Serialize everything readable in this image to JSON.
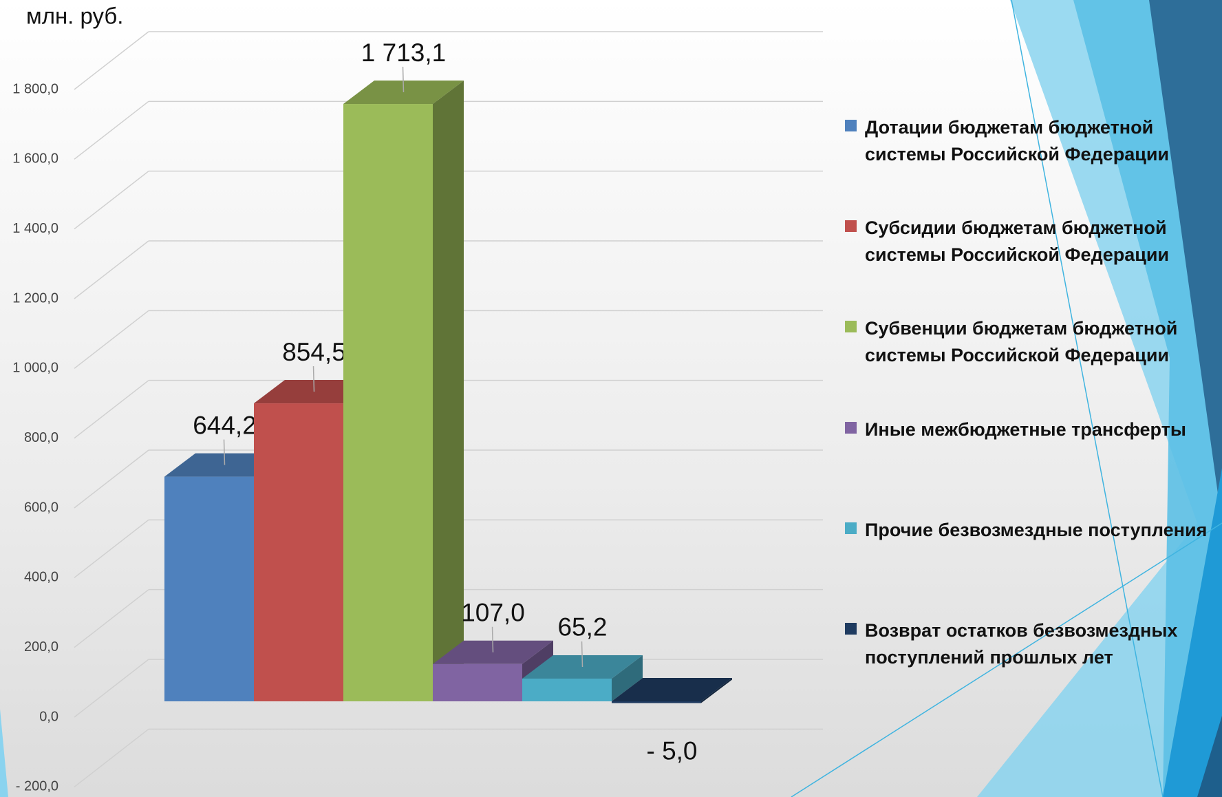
{
  "chart_data": {
    "type": "bar",
    "y_axis_label": "млн. руб.",
    "series": [
      {
        "name": "Дотации бюджетам бюджетной системы Российской Федерации",
        "color": "#4f81bd",
        "values": [
          644.2
        ],
        "value_labels": [
          "644,2"
        ]
      },
      {
        "name": "Субсидии бюджетам бюджетной системы Российской Федерации",
        "color": "#c0504d",
        "values": [
          854.5
        ],
        "value_labels": [
          "854,5"
        ]
      },
      {
        "name": "Субвенции бюджетам бюджетной системы Российской Федерации",
        "color": "#9bbb59",
        "values": [
          1713.1
        ],
        "value_labels": [
          "1 713,1"
        ]
      },
      {
        "name": "Иные межбюджетные трансферты",
        "color": "#8064a2",
        "values": [
          107.0
        ],
        "value_labels": [
          "107,0"
        ]
      },
      {
        "name": "Прочие безвозмездные поступления",
        "color": "#4bacc6",
        "values": [
          65.2
        ],
        "value_labels": [
          "65,2"
        ]
      },
      {
        "name": "Возврат остатков безвозмездных поступлений прошлых лет",
        "color": "#1f3b60",
        "values": [
          -5.0
        ],
        "value_labels": [
          "- 5,0"
        ]
      }
    ],
    "ylim": [
      -200,
      1800
    ],
    "yticks": [
      {
        "value": -200,
        "label": "- 200,0"
      },
      {
        "value": 0,
        "label": "0,0"
      },
      {
        "value": 200,
        "label": "200,0"
      },
      {
        "value": 400,
        "label": "400,0"
      },
      {
        "value": 600,
        "label": "600,0"
      },
      {
        "value": 800,
        "label": "800,0"
      },
      {
        "value": 1000,
        "label": "1 000,0"
      },
      {
        "value": 1200,
        "label": "1 200,0"
      },
      {
        "value": 1400,
        "label": "1 400,0"
      },
      {
        "value": 1600,
        "label": "1 600,0"
      },
      {
        "value": 1800,
        "label": "1 800,0"
      }
    ],
    "grid": true,
    "legend": "right"
  }
}
